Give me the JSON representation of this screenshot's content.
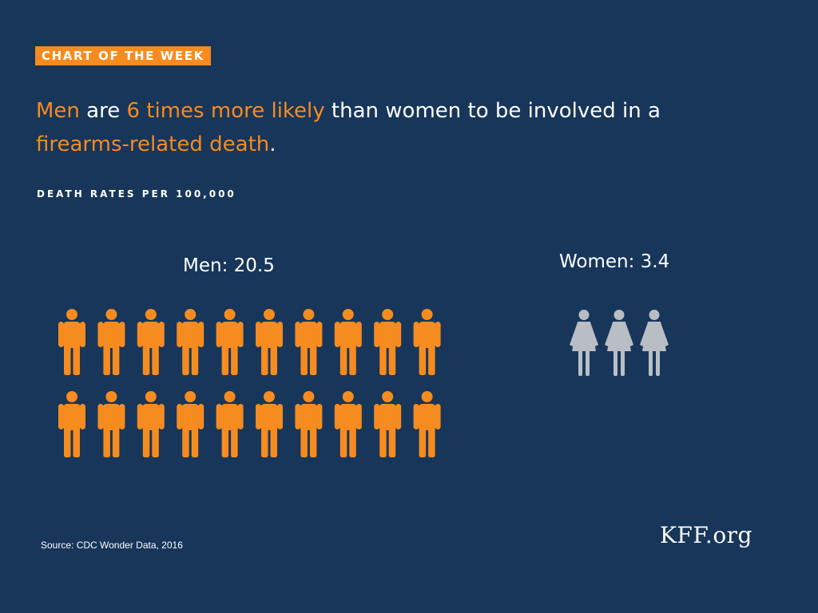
{
  "badge": "CHART OF THE WEEK",
  "headline": {
    "p1": "Men",
    "p2": " are ",
    "p3": "6 times more likely",
    "p4": " than women to be involved in a ",
    "p5": "firearms-related death",
    "p6": "."
  },
  "subtitle": "DEATH RATES PER 100,000",
  "source": "Source: CDC Wonder Data, 2016",
  "logo": "KFF.org",
  "colors": {
    "background": "#17365a",
    "accent": "#f68b1f",
    "women": "#b9bec4"
  },
  "chart_data": {
    "type": "pictograph",
    "title": "Men are 6 times more likely than women to be involved in a firearms-related death.",
    "subtitle": "DEATH RATES PER 100,000",
    "categories": [
      "Men",
      "Women"
    ],
    "values": [
      20.5,
      3.4
    ],
    "labels": [
      "Men: 20.5",
      "Women: 3.4"
    ],
    "icons_shown": [
      20,
      3
    ],
    "icon_names": [
      "man-icon",
      "woman-icon"
    ],
    "colors": [
      "#f68b1f",
      "#b9bec4"
    ],
    "source": "Source: CDC Wonder Data, 2016"
  }
}
